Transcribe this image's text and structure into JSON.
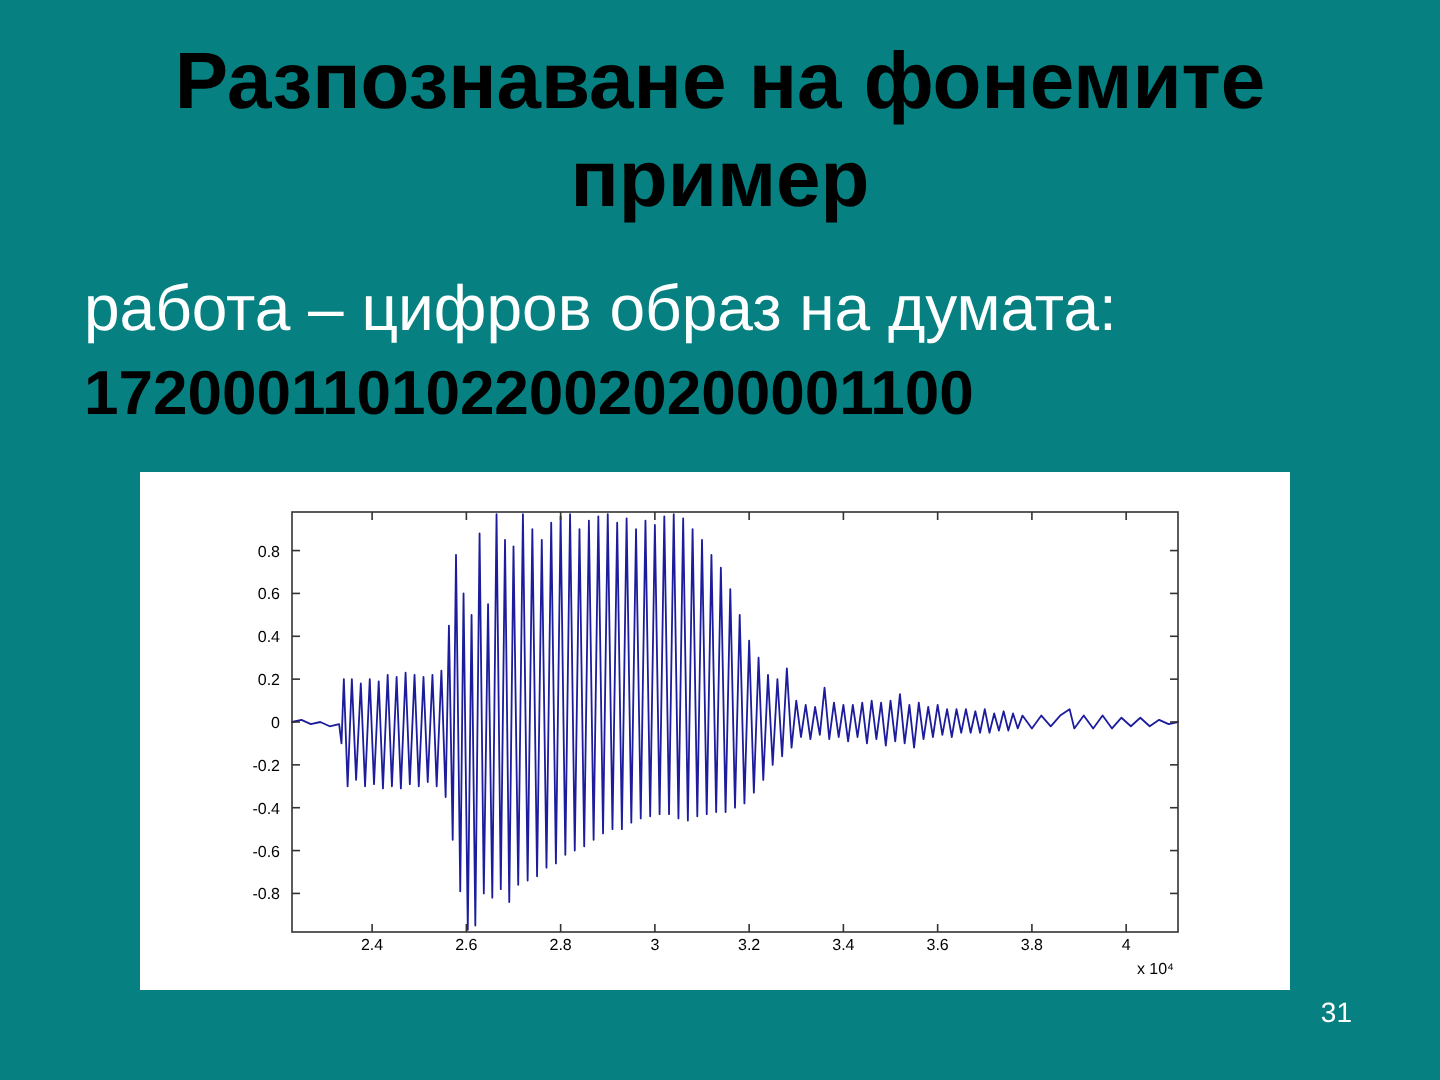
{
  "chart_data": {
    "type": "line",
    "title": "Разпознаване на фонемите пример",
    "annotations": [
      "работа – цифров образ на думата:",
      "17200011010220020200001100",
      "x 10⁴",
      "31"
    ],
    "series": [
      {
        "color": "#1c1c9c",
        "x": [
          2.23,
          2.25,
          2.27,
          2.29,
          2.31,
          2.33,
          2.335,
          2.34,
          2.348,
          2.357,
          2.366,
          2.376,
          2.385,
          2.395,
          2.404,
          2.414,
          2.423,
          2.433,
          2.442,
          2.452,
          2.461,
          2.471,
          2.48,
          2.49,
          2.499,
          2.509,
          2.518,
          2.528,
          2.537,
          2.547,
          2.556,
          2.563,
          2.571,
          2.578,
          2.587,
          2.594,
          2.603,
          2.611,
          2.619,
          2.628,
          2.637,
          2.646,
          2.655,
          2.664,
          2.673,
          2.682,
          2.691,
          2.7,
          2.71,
          2.72,
          2.73,
          2.74,
          2.75,
          2.76,
          2.77,
          2.78,
          2.79,
          2.8,
          2.81,
          2.82,
          2.83,
          2.84,
          2.85,
          2.86,
          2.87,
          2.88,
          2.89,
          2.9,
          2.91,
          2.92,
          2.93,
          2.94,
          2.95,
          2.96,
          2.97,
          2.98,
          2.99,
          3.0,
          3.01,
          3.02,
          3.03,
          3.04,
          3.05,
          3.06,
          3.07,
          3.08,
          3.09,
          3.1,
          3.11,
          3.12,
          3.13,
          3.14,
          3.15,
          3.16,
          3.17,
          3.18,
          3.19,
          3.2,
          3.21,
          3.22,
          3.23,
          3.24,
          3.25,
          3.26,
          3.27,
          3.28,
          3.29,
          3.3,
          3.31,
          3.32,
          3.33,
          3.34,
          3.35,
          3.36,
          3.37,
          3.38,
          3.39,
          3.4,
          3.41,
          3.42,
          3.43,
          3.44,
          3.45,
          3.46,
          3.47,
          3.48,
          3.49,
          3.5,
          3.51,
          3.52,
          3.53,
          3.54,
          3.55,
          3.56,
          3.57,
          3.58,
          3.59,
          3.6,
          3.61,
          3.62,
          3.63,
          3.64,
          3.65,
          3.66,
          3.67,
          3.68,
          3.69,
          3.7,
          3.71,
          3.72,
          3.73,
          3.74,
          3.75,
          3.76,
          3.77,
          3.78,
          3.8,
          3.82,
          3.84,
          3.86,
          3.88,
          3.89,
          3.91,
          3.93,
          3.95,
          3.97,
          3.99,
          4.01,
          4.03,
          4.05,
          4.07,
          4.09,
          4.11
        ],
        "values": [
          0,
          0.01,
          -0.01,
          0,
          -0.02,
          -0.01,
          -0.1,
          0.2,
          -0.3,
          0.2,
          -0.27,
          0.18,
          -0.3,
          0.2,
          -0.29,
          0.19,
          -0.31,
          0.22,
          -0.3,
          0.21,
          -0.31,
          0.23,
          -0.29,
          0.22,
          -0.3,
          0.21,
          -0.28,
          0.22,
          -0.3,
          0.24,
          -0.35,
          0.45,
          -0.55,
          0.78,
          -0.79,
          0.6,
          -0.97,
          0.5,
          -0.95,
          0.88,
          -0.8,
          0.55,
          -0.82,
          0.97,
          -0.78,
          0.85,
          -0.84,
          0.82,
          -0.76,
          0.97,
          -0.74,
          0.9,
          -0.72,
          0.85,
          -0.68,
          0.93,
          -0.66,
          0.96,
          -0.62,
          0.97,
          -0.6,
          0.9,
          -0.58,
          0.94,
          -0.55,
          0.96,
          -0.52,
          0.97,
          -0.5,
          0.93,
          -0.5,
          0.95,
          -0.47,
          0.9,
          -0.45,
          0.94,
          -0.44,
          0.92,
          -0.43,
          0.96,
          -0.43,
          0.97,
          -0.45,
          0.95,
          -0.46,
          0.9,
          -0.44,
          0.85,
          -0.43,
          0.78,
          -0.42,
          0.72,
          -0.42,
          0.62,
          -0.4,
          0.5,
          -0.38,
          0.38,
          -0.33,
          0.3,
          -0.27,
          0.22,
          -0.2,
          0.2,
          -0.16,
          0.25,
          -0.12,
          0.1,
          -0.07,
          0.08,
          -0.08,
          0.07,
          -0.06,
          0.16,
          -0.08,
          0.09,
          -0.07,
          0.08,
          -0.09,
          0.08,
          -0.07,
          0.09,
          -0.1,
          0.1,
          -0.08,
          0.09,
          -0.11,
          0.1,
          -0.09,
          0.13,
          -0.1,
          0.08,
          -0.12,
          0.09,
          -0.08,
          0.07,
          -0.07,
          0.08,
          -0.06,
          0.06,
          -0.07,
          0.06,
          -0.05,
          0.06,
          -0.05,
          0.05,
          -0.05,
          0.06,
          -0.05,
          0.04,
          -0.04,
          0.05,
          -0.04,
          0.04,
          -0.03,
          0.03,
          -0.03,
          0.03,
          -0.02,
          0.03,
          0.06,
          -0.03,
          0.03,
          -0.03,
          0.03,
          -0.03,
          0.02,
          -0.02,
          0.02,
          -0.02,
          0.01,
          -0.01,
          0
        ]
      }
    ],
    "xlim": [
      2.23,
      4.11
    ],
    "xticks": [
      2.4,
      2.6,
      2.8,
      3,
      3.2,
      3.4,
      3.6,
      3.8,
      4
    ],
    "ylim": [
      -0.98,
      0.98
    ],
    "yticks": [
      -0.8,
      -0.6,
      -0.4,
      -0.2,
      0,
      0.2,
      0.4,
      0.6,
      0.8
    ]
  }
}
